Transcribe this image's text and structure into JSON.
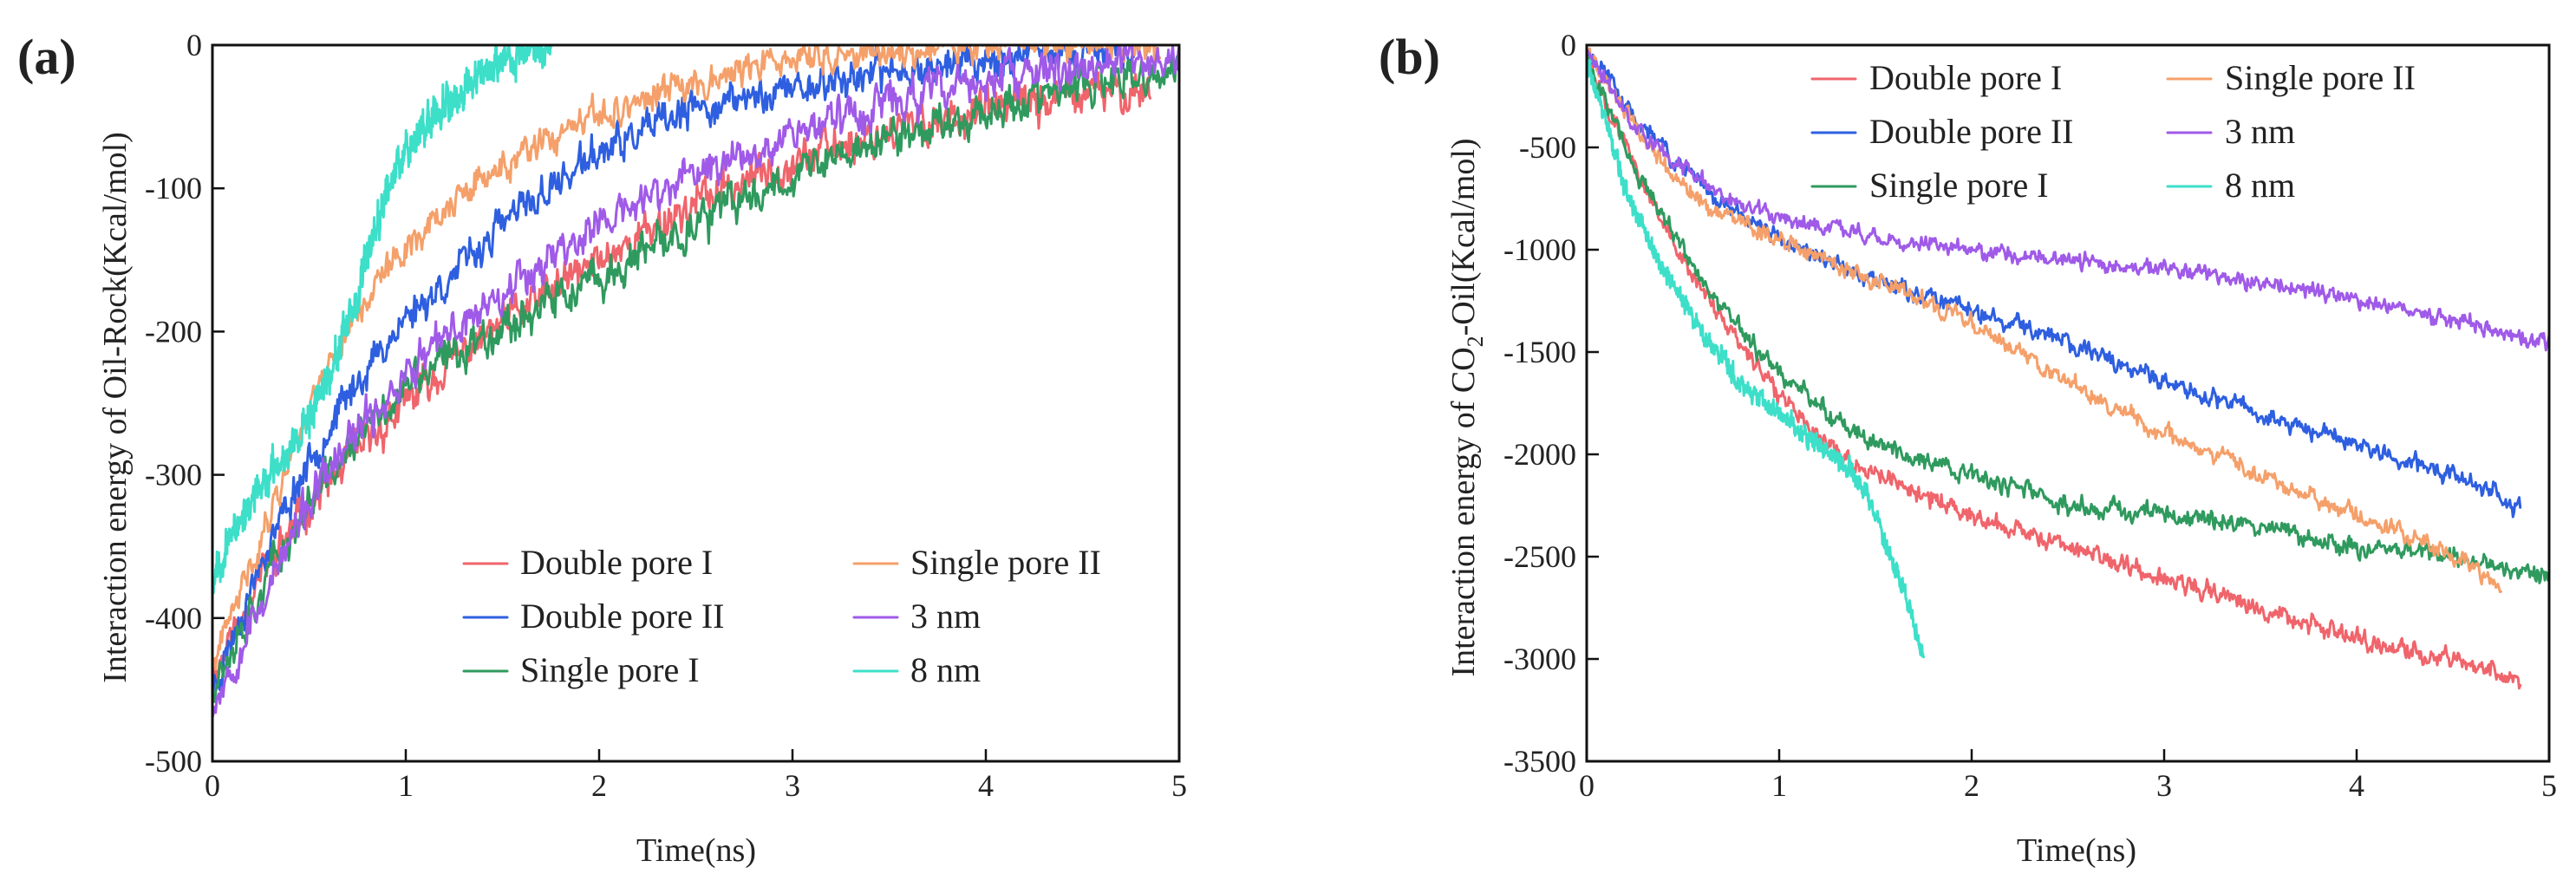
{
  "chart_data": [
    {
      "panel": "(a)",
      "type": "line",
      "title": "",
      "xlabel": "Time(ns)",
      "ylabel": "Interaction energy of Oil-Rock(Kcal/mol)",
      "xlim": [
        0,
        5
      ],
      "ylim": [
        -500,
        0
      ],
      "xticks": [
        0,
        1,
        2,
        3,
        4,
        5
      ],
      "yticks": [
        0,
        -100,
        -200,
        -300,
        -400,
        -500
      ],
      "xticklabels": [
        "0",
        "1",
        "2",
        "3",
        "4",
        "5"
      ],
      "yticklabels": [
        "0",
        "-100",
        "-200",
        "-300",
        "-400",
        "-500"
      ],
      "legend_position": "bottom-right",
      "series": [
        {
          "name": "Double pore I",
          "color": "#f0646b",
          "noise": 9,
          "seed": 11,
          "points": [
            [
              0,
              -440
            ],
            [
              0.25,
              -370
            ],
            [
              0.5,
              -320
            ],
            [
              0.75,
              -285
            ],
            [
              1,
              -250
            ],
            [
              1.25,
              -220
            ],
            [
              1.5,
              -195
            ],
            [
              2,
              -150
            ],
            [
              2.5,
              -110
            ],
            [
              3,
              -80
            ],
            [
              3.5,
              -60
            ],
            [
              4,
              -45
            ],
            [
              4.5,
              -35
            ],
            [
              4.85,
              -30
            ]
          ]
        },
        {
          "name": "Double pore II",
          "color": "#2e5fe0",
          "noise": 8,
          "seed": 23,
          "points": [
            [
              0,
              -450
            ],
            [
              0.25,
              -360
            ],
            [
              0.5,
              -290
            ],
            [
              0.75,
              -235
            ],
            [
              1,
              -190
            ],
            [
              1.25,
              -160
            ],
            [
              1.5,
              -125
            ],
            [
              2,
              -75
            ],
            [
              2.5,
              -45
            ],
            [
              3,
              -30
            ],
            [
              3.5,
              -18
            ],
            [
              4,
              -10
            ],
            [
              4.5,
              -5
            ],
            [
              4.85,
              0
            ]
          ]
        },
        {
          "name": "Single pore I",
          "color": "#2f9a5e",
          "noise": 9,
          "seed": 37,
          "points": [
            [
              0,
              -445
            ],
            [
              0.25,
              -380
            ],
            [
              0.5,
              -320
            ],
            [
              0.75,
              -275
            ],
            [
              1,
              -240
            ],
            [
              1.25,
              -215
            ],
            [
              1.5,
              -195
            ],
            [
              2,
              -165
            ],
            [
              2.5,
              -125
            ],
            [
              3,
              -90
            ],
            [
              3.5,
              -65
            ],
            [
              4,
              -45
            ],
            [
              4.5,
              -30
            ],
            [
              5,
              -20
            ]
          ]
        },
        {
          "name": "Single pore II",
          "color": "#f5a06a",
          "noise": 7,
          "seed": 41,
          "points": [
            [
              0,
              -435
            ],
            [
              0.25,
              -345
            ],
            [
              0.5,
              -250
            ],
            [
              0.75,
              -185
            ],
            [
              1,
              -140
            ],
            [
              1.25,
              -110
            ],
            [
              1.5,
              -85
            ],
            [
              2,
              -50
            ],
            [
              2.5,
              -25
            ],
            [
              3,
              -10
            ],
            [
              3.5,
              -5
            ],
            [
              4,
              0
            ],
            [
              4.5,
              0
            ],
            [
              4.9,
              0
            ]
          ]
        },
        {
          "name": "3 nm",
          "color": "#a05ae8",
          "noise": 9,
          "seed": 53,
          "points": [
            [
              0,
              -460
            ],
            [
              0.25,
              -390
            ],
            [
              0.5,
              -320
            ],
            [
              0.75,
              -270
            ],
            [
              1,
              -230
            ],
            [
              1.25,
              -200
            ],
            [
              1.5,
              -170
            ],
            [
              2,
              -125
            ],
            [
              2.5,
              -90
            ],
            [
              3,
              -60
            ],
            [
              3.5,
              -40
            ],
            [
              4,
              -25
            ],
            [
              4.5,
              -15
            ],
            [
              5,
              -10
            ]
          ]
        },
        {
          "name": "8 nm",
          "color": "#3ddfc9",
          "noise": 8,
          "seed": 67,
          "points": [
            [
              0,
              -370
            ],
            [
              0.15,
              -330
            ],
            [
              0.3,
              -300
            ],
            [
              0.5,
              -260
            ],
            [
              0.65,
              -215
            ],
            [
              0.75,
              -180
            ],
            [
              0.85,
              -120
            ],
            [
              1,
              -70
            ],
            [
              1.2,
              -40
            ],
            [
              1.4,
              -20
            ],
            [
              1.6,
              -5
            ],
            [
              1.75,
              0
            ]
          ]
        }
      ]
    },
    {
      "panel": "(b)",
      "type": "line",
      "title": "",
      "xlabel": "Time(ns)",
      "ylabel_prefix": "Interaction energy of CO",
      "ylabel_subscript": "2",
      "ylabel_suffix": "-Oil(Kcal/mol)",
      "xlim": [
        0,
        5
      ],
      "ylim": [
        -3500,
        0
      ],
      "xticks": [
        0,
        1,
        2,
        3,
        4,
        5
      ],
      "yticks": [
        0,
        -500,
        -1000,
        -1500,
        -2000,
        -2500,
        -3000,
        -3500
      ],
      "xticklabels": [
        "0",
        "1",
        "2",
        "3",
        "4",
        "5"
      ],
      "yticklabels": [
        "0",
        "-500",
        "-1000",
        "-1500",
        "-2000",
        "-2500",
        "-3000",
        "-3500"
      ],
      "legend_position": "top-right",
      "series": [
        {
          "name": "Double pore I",
          "color": "#f0646b",
          "noise": 30,
          "seed": 101,
          "points": [
            [
              0,
              -50
            ],
            [
              0.25,
              -600
            ],
            [
              0.5,
              -1050
            ],
            [
              0.75,
              -1400
            ],
            [
              1,
              -1700
            ],
            [
              1.25,
              -1950
            ],
            [
              1.5,
              -2100
            ],
            [
              2,
              -2300
            ],
            [
              2.5,
              -2450
            ],
            [
              3,
              -2600
            ],
            [
              3.5,
              -2750
            ],
            [
              4,
              -2900
            ],
            [
              4.5,
              -3000
            ],
            [
              4.85,
              -3100
            ]
          ]
        },
        {
          "name": "Double pore II",
          "color": "#2e5fe0",
          "noise": 28,
          "seed": 113,
          "points": [
            [
              0,
              -20
            ],
            [
              0.25,
              -350
            ],
            [
              0.5,
              -600
            ],
            [
              0.75,
              -800
            ],
            [
              1,
              -950
            ],
            [
              1.5,
              -1150
            ],
            [
              2,
              -1300
            ],
            [
              2.5,
              -1450
            ],
            [
              3,
              -1650
            ],
            [
              3.5,
              -1800
            ],
            [
              4,
              -1950
            ],
            [
              4.5,
              -2100
            ],
            [
              4.85,
              -2250
            ]
          ]
        },
        {
          "name": "Single pore I",
          "color": "#2f9a5e",
          "noise": 30,
          "seed": 127,
          "points": [
            [
              0,
              -50
            ],
            [
              0.25,
              -600
            ],
            [
              0.5,
              -1000
            ],
            [
              0.75,
              -1350
            ],
            [
              1,
              -1600
            ],
            [
              1.25,
              -1800
            ],
            [
              1.5,
              -1950
            ],
            [
              2,
              -2100
            ],
            [
              2.5,
              -2250
            ],
            [
              3,
              -2300
            ],
            [
              3.5,
              -2350
            ],
            [
              4,
              -2450
            ],
            [
              4.5,
              -2500
            ],
            [
              5,
              -2600
            ]
          ]
        },
        {
          "name": "Single pore II",
          "color": "#f5a06a",
          "noise": 28,
          "seed": 131,
          "points": [
            [
              0,
              -20
            ],
            [
              0.25,
              -400
            ],
            [
              0.5,
              -700
            ],
            [
              0.75,
              -850
            ],
            [
              1,
              -950
            ],
            [
              1.5,
              -1150
            ],
            [
              2,
              -1350
            ],
            [
              2.5,
              -1650
            ],
            [
              3,
              -1900
            ],
            [
              3.5,
              -2100
            ],
            [
              4,
              -2300
            ],
            [
              4.5,
              -2500
            ],
            [
              4.75,
              -2650
            ]
          ]
        },
        {
          "name": "3 nm",
          "color": "#a05ae8",
          "noise": 26,
          "seed": 149,
          "points": [
            [
              0,
              -20
            ],
            [
              0.25,
              -400
            ],
            [
              0.5,
              -600
            ],
            [
              0.75,
              -750
            ],
            [
              1,
              -850
            ],
            [
              1.5,
              -950
            ],
            [
              2,
              -1000
            ],
            [
              2.5,
              -1050
            ],
            [
              3,
              -1100
            ],
            [
              3.5,
              -1150
            ],
            [
              4,
              -1250
            ],
            [
              4.5,
              -1350
            ],
            [
              5,
              -1450
            ]
          ]
        },
        {
          "name": "8 nm",
          "color": "#3ddfc9",
          "noise": 30,
          "seed": 157,
          "points": [
            [
              0,
              -60
            ],
            [
              0.2,
              -700
            ],
            [
              0.4,
              -1100
            ],
            [
              0.6,
              -1400
            ],
            [
              0.8,
              -1650
            ],
            [
              1,
              -1800
            ],
            [
              1.2,
              -1950
            ],
            [
              1.4,
              -2100
            ],
            [
              1.5,
              -2300
            ],
            [
              1.6,
              -2550
            ],
            [
              1.7,
              -2800
            ],
            [
              1.75,
              -3000
            ]
          ]
        }
      ]
    }
  ]
}
